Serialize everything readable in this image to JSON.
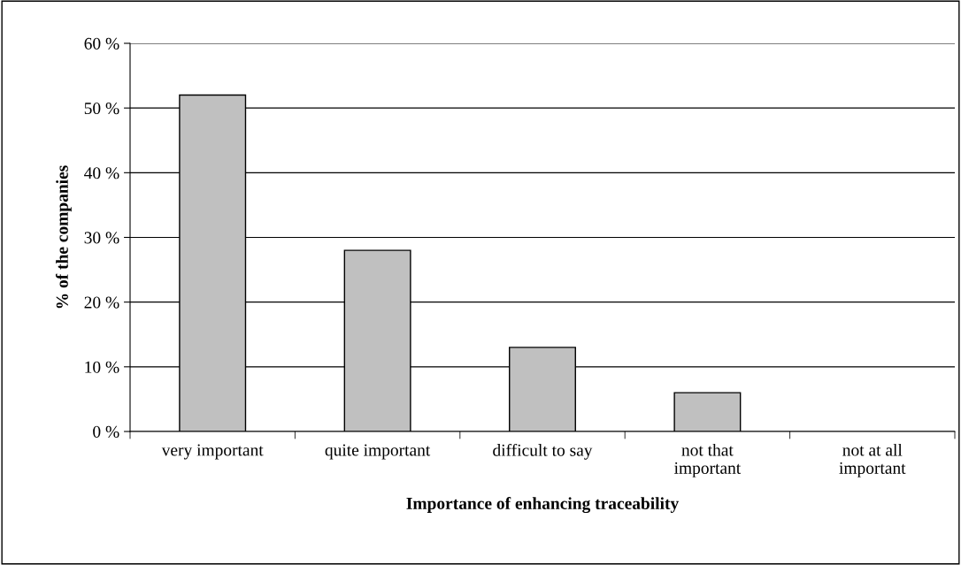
{
  "chart_data": {
    "type": "bar",
    "xlabel": "Importance of enhancing traceability",
    "ylabel": "% of the companies",
    "categories": [
      "very important",
      "quite important",
      "difficult to say",
      "not that\nimportant",
      "not at all\nimportant"
    ],
    "values": [
      52,
      28,
      13,
      6,
      0
    ],
    "color": "#c0c0c0",
    "ylim": [
      0,
      60
    ],
    "yticks": [
      {
        "value": 0,
        "label": "0 %"
      },
      {
        "value": 10,
        "label": "10 %"
      },
      {
        "value": 20,
        "label": "20 %"
      },
      {
        "value": 30,
        "label": "30 %"
      },
      {
        "value": 40,
        "label": "40 %"
      },
      {
        "value": 50,
        "label": "50 %"
      },
      {
        "value": 60,
        "label": "60 %"
      }
    ],
    "grid": "y",
    "legend": false
  }
}
